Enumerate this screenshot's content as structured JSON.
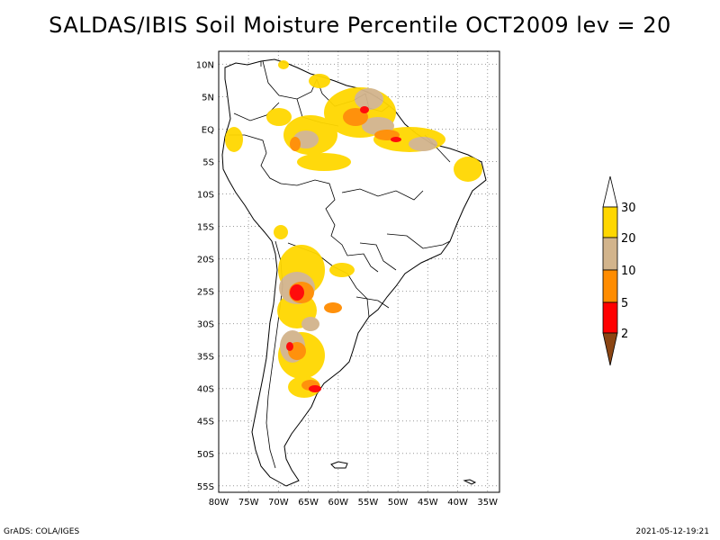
{
  "title": "SALDAS/IBIS Soil Moisture Percentile OCT2009 lev = 20",
  "map": {
    "region": "South America",
    "lon_range": [
      -80,
      -33
    ],
    "lat_range": [
      -56,
      12
    ],
    "lat_ticks": [
      "10N",
      "5N",
      "EQ",
      "5S",
      "10S",
      "15S",
      "20S",
      "25S",
      "30S",
      "35S",
      "40S",
      "45S",
      "50S",
      "55S"
    ],
    "lon_ticks": [
      "80W",
      "75W",
      "70W",
      "65W",
      "60W",
      "55W",
      "50W",
      "45W",
      "40W",
      "35W"
    ],
    "grid": true
  },
  "legend": {
    "labels": [
      "30",
      "20",
      "10",
      "5",
      "2"
    ],
    "colors": {
      "above_30": "#ffffff",
      "20_30": "#ffd700",
      "10_20": "#d2b48c",
      "5_10": "#ff8c00",
      "2_5": "#ff0000",
      "below_2": "#8b4513"
    }
  },
  "footer": {
    "left": "GrADS: COLA/IGES",
    "right": "2021-05-12-19:21"
  }
}
